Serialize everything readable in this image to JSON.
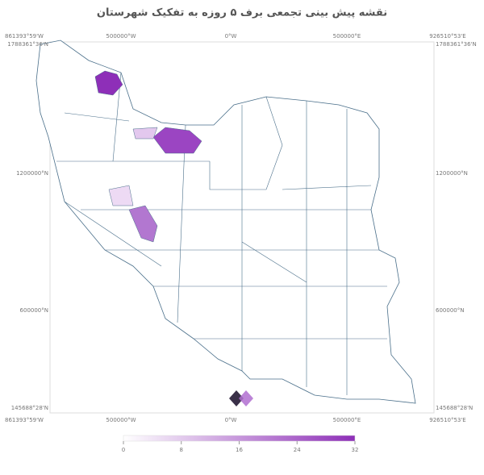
{
  "title": "نقشه پیش بینی تجمعی برف ۵ روزه به تفکیک شهرستان",
  "frame": {
    "x_labels": [
      "861393°59'W",
      "500000°W",
      "0°W",
      "500000°E",
      "926510°53'E"
    ],
    "y_labels": [
      "1788361°36'N",
      "1200000°N",
      "600000°N",
      "145688°28'N"
    ]
  },
  "colorbar": {
    "min": 0,
    "max": 32,
    "ticks": [
      0,
      8,
      16,
      24,
      32
    ],
    "colors": [
      "#ffffff",
      "#8e2fb8"
    ]
  }
}
